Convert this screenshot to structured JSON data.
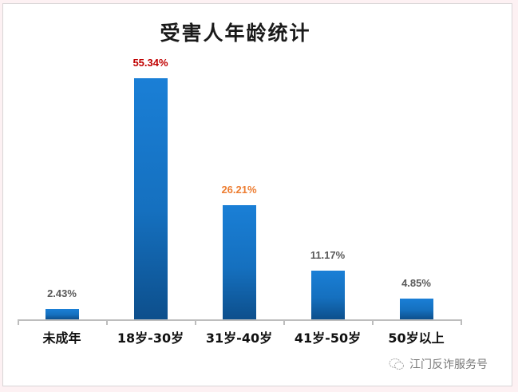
{
  "chart_data": {
    "type": "bar",
    "title": "受害人年龄统计",
    "categories": [
      "未成年",
      "18岁-30岁",
      "31岁-40岁",
      "41岁-50岁",
      "50岁以上"
    ],
    "values": [
      2.43,
      55.34,
      26.21,
      11.17,
      4.85
    ],
    "value_labels": [
      "2.43%",
      "55.34%",
      "26.21%",
      "11.17%",
      "4.85%"
    ],
    "label_colors": [
      "#595959",
      "#c00000",
      "#ed7d31",
      "#595959",
      "#595959"
    ],
    "bar_color": "#1570bf",
    "xlabel": "",
    "ylabel": "",
    "ylim": [
      0,
      60
    ],
    "grid": false,
    "legend": "none"
  },
  "watermark": {
    "text": "江门反诈服务号",
    "icon": "wechat-icon"
  }
}
